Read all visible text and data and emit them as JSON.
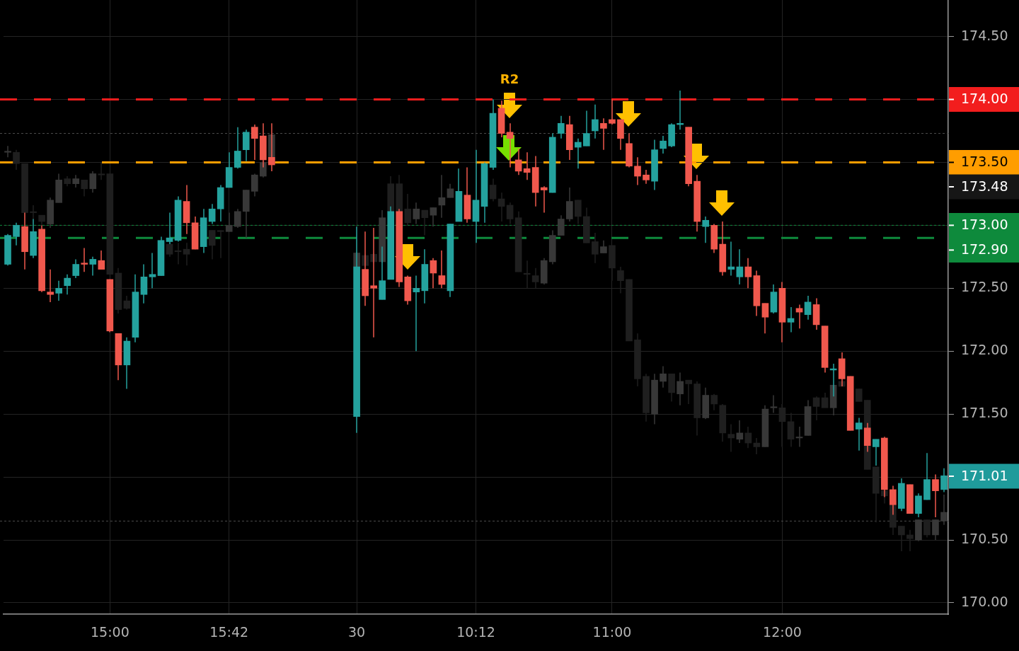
{
  "chart_data": {
    "type": "candlestick",
    "categories": [
      null,
      null,
      null,
      null,
      null,
      null,
      null,
      null,
      null,
      null,
      null,
      null,
      "15:00",
      null,
      null,
      null,
      null,
      null,
      null,
      null,
      null,
      null,
      null,
      null,
      null,
      null,
      "15:42",
      null,
      null,
      null,
      null,
      null,
      null,
      null,
      null,
      null,
      null,
      null,
      null,
      null,
      null,
      "30",
      null,
      null,
      null,
      null,
      null,
      null,
      null,
      null,
      null,
      null,
      null,
      null,
      null,
      "10:12",
      null,
      null,
      null,
      null,
      null,
      null,
      null,
      null,
      null,
      null,
      null,
      null,
      null,
      null,
      null,
      "11:00",
      null,
      null,
      null,
      null,
      null,
      null,
      null,
      null,
      null,
      null,
      null,
      null,
      null,
      null,
      null,
      null,
      null,
      null,
      null,
      "12:00",
      null,
      null,
      null,
      null,
      null,
      null,
      null,
      null,
      null,
      null,
      null,
      null,
      null,
      null,
      null,
      null,
      null,
      null,
      null
    ],
    "series": [
      {
        "ohlc": [
          [
            172.69,
            172.93,
            172.68,
            172.92
          ],
          [
            172.91,
            173.02,
            172.84,
            173.0
          ],
          [
            172.99,
            173.1,
            172.65,
            172.79
          ],
          [
            172.76,
            173.05,
            172.74,
            172.95
          ],
          [
            172.97,
            173.0,
            172.47,
            172.48
          ],
          [
            172.47,
            172.65,
            172.39,
            172.45
          ],
          [
            172.46,
            172.56,
            172.4,
            172.5
          ],
          [
            172.52,
            172.61,
            172.45,
            172.58
          ],
          [
            172.6,
            172.73,
            172.58,
            172.69
          ],
          [
            172.7,
            172.82,
            172.63,
            172.69
          ],
          [
            172.69,
            172.75,
            172.6,
            172.73
          ],
          [
            172.72,
            172.8,
            172.65,
            172.65
          ],
          [
            172.57,
            172.57,
            172.15,
            172.16
          ],
          [
            172.14,
            172.14,
            171.77,
            171.89
          ],
          [
            171.89,
            172.11,
            171.7,
            172.08
          ],
          [
            172.11,
            172.61,
            172.07,
            172.47
          ],
          [
            172.45,
            172.69,
            172.38,
            172.59
          ],
          [
            172.59,
            172.78,
            172.5,
            172.61
          ],
          [
            172.6,
            172.91,
            172.6,
            172.88
          ],
          [
            172.87,
            173.1,
            172.85,
            172.9
          ],
          [
            172.88,
            173.23,
            172.87,
            173.2
          ],
          [
            173.19,
            173.32,
            172.93,
            173.02
          ],
          [
            173.02,
            173.07,
            172.81,
            172.81
          ],
          [
            172.83,
            173.13,
            172.78,
            173.06
          ],
          [
            173.03,
            173.17,
            173.01,
            173.13
          ],
          [
            173.13,
            173.32,
            173.03,
            173.3
          ],
          [
            173.3,
            173.58,
            173.3,
            173.46
          ],
          [
            173.46,
            173.78,
            173.45,
            173.59
          ],
          [
            173.6,
            173.76,
            173.51,
            173.74
          ],
          [
            173.78,
            173.8,
            173.52,
            173.69
          ],
          [
            173.71,
            173.81,
            173.46,
            173.52
          ],
          [
            173.54,
            173.81,
            173.43,
            173.48
          ],
          null,
          null,
          null,
          null,
          null,
          null,
          null,
          null,
          null,
          [
            171.48,
            172.99,
            171.35,
            172.67
          ],
          [
            172.65,
            172.95,
            172.36,
            172.44
          ],
          [
            172.52,
            172.98,
            172.11,
            172.5
          ],
          [
            172.41,
            172.83,
            172.41,
            172.56
          ],
          [
            172.57,
            173.15,
            172.57,
            173.11
          ],
          [
            173.11,
            173.13,
            172.51,
            172.55
          ],
          [
            172.59,
            172.6,
            172.37,
            172.4
          ],
          [
            172.47,
            172.6,
            172.0,
            172.5
          ],
          [
            172.48,
            172.81,
            172.38,
            172.69
          ],
          [
            172.72,
            172.74,
            172.5,
            172.62
          ],
          [
            172.6,
            172.8,
            172.5,
            172.53
          ],
          [
            172.48,
            173.01,
            172.43,
            173.01
          ],
          [
            173.03,
            173.45,
            173.03,
            173.27
          ],
          [
            173.24,
            173.46,
            173.02,
            173.05
          ],
          [
            173.03,
            173.6,
            172.86,
            173.2
          ],
          [
            173.15,
            173.5,
            173.02,
            173.49
          ],
          [
            173.46,
            174.0,
            173.44,
            173.89
          ],
          [
            173.93,
            173.99,
            173.7,
            173.73
          ],
          [
            173.74,
            173.81,
            173.46,
            173.69
          ],
          [
            173.52,
            173.61,
            173.4,
            173.43
          ],
          [
            173.45,
            173.58,
            173.36,
            173.42
          ],
          [
            173.46,
            173.55,
            173.15,
            173.26
          ],
          [
            173.3,
            173.31,
            173.1,
            173.28
          ],
          [
            173.26,
            173.73,
            173.26,
            173.7
          ],
          [
            173.73,
            173.87,
            173.69,
            173.81
          ],
          [
            173.8,
            173.87,
            173.52,
            173.6
          ],
          [
            173.62,
            173.69,
            173.45,
            173.66
          ],
          [
            173.63,
            173.91,
            173.63,
            173.73
          ],
          [
            173.75,
            173.96,
            173.69,
            173.84
          ],
          [
            173.81,
            173.85,
            173.6,
            173.77
          ],
          [
            173.84,
            174.0,
            173.8,
            173.81
          ],
          [
            173.84,
            173.84,
            173.6,
            173.69
          ],
          [
            173.65,
            173.73,
            173.46,
            173.47
          ],
          [
            173.47,
            173.54,
            173.32,
            173.39
          ],
          [
            173.4,
            173.44,
            173.33,
            173.36
          ],
          [
            173.35,
            173.68,
            173.28,
            173.6
          ],
          [
            173.61,
            173.71,
            173.57,
            173.67
          ],
          [
            173.63,
            173.81,
            173.62,
            173.8
          ],
          [
            173.8,
            174.07,
            173.76,
            173.81
          ],
          [
            173.78,
            173.78,
            173.31,
            173.33
          ],
          [
            173.35,
            173.4,
            172.95,
            173.03
          ],
          [
            172.99,
            173.07,
            172.86,
            173.04
          ],
          [
            173.0,
            173.01,
            172.78,
            172.81
          ],
          [
            172.85,
            173.03,
            172.6,
            172.63
          ],
          [
            172.65,
            172.87,
            172.6,
            172.67
          ],
          [
            172.59,
            172.81,
            172.53,
            172.67
          ],
          [
            172.67,
            172.74,
            172.5,
            172.59
          ],
          [
            172.6,
            172.64,
            172.28,
            172.36
          ],
          [
            172.38,
            172.38,
            172.14,
            172.27
          ],
          [
            172.31,
            172.53,
            172.3,
            172.47
          ],
          [
            172.5,
            172.55,
            172.07,
            172.23
          ],
          [
            172.23,
            172.35,
            172.15,
            172.26
          ],
          [
            172.34,
            172.37,
            172.18,
            172.31
          ],
          [
            172.29,
            172.44,
            172.25,
            172.39
          ],
          [
            172.37,
            172.42,
            172.17,
            172.21
          ],
          [
            172.2,
            172.2,
            171.83,
            171.87
          ],
          [
            171.85,
            171.9,
            171.64,
            171.86
          ],
          [
            171.94,
            171.99,
            171.72,
            171.78
          ],
          [
            171.8,
            171.8,
            171.37,
            171.37
          ],
          [
            171.38,
            171.47,
            171.21,
            171.43
          ],
          [
            171.39,
            171.43,
            171.2,
            171.25
          ],
          [
            171.24,
            171.3,
            171.09,
            171.3
          ],
          [
            171.31,
            171.32,
            170.84,
            170.9
          ],
          [
            170.9,
            170.93,
            170.7,
            170.78
          ],
          [
            170.75,
            170.99,
            170.73,
            170.95
          ],
          [
            170.94,
            170.94,
            170.71,
            170.71
          ],
          [
            170.71,
            170.87,
            170.68,
            170.85
          ],
          [
            170.82,
            171.19,
            170.82,
            170.98
          ],
          [
            170.98,
            171.02,
            170.68,
            170.89
          ],
          [
            170.9,
            171.07,
            170.88,
            171.01
          ]
        ],
        "colors": [
          "#24a29e",
          "#24a29e",
          "#f0584d",
          "#24a29e",
          "#f0584d",
          "#f0584d",
          "#24a29e",
          "#24a29e",
          "#24a29e",
          "#f0584d",
          "#24a29e",
          "#f0584d",
          "#f0584d",
          "#f0584d",
          "#24a29e",
          "#24a29e",
          "#24a29e",
          "#24a29e",
          "#24a29e",
          "#24a29e",
          "#24a29e",
          "#f0584d",
          "#f0584d",
          "#24a29e",
          "#24a29e",
          "#24a29e",
          "#24a29e",
          "#24a29e",
          "#24a29e",
          "#f0584d",
          "#f0584d",
          "#f0584d",
          null,
          null,
          null,
          null,
          null,
          null,
          null,
          null,
          null,
          "#24a29e",
          "#f0584d",
          "#f0584d",
          "#24a29e",
          "#24a29e",
          "#f0584d",
          "#f0584d",
          "#24a29e",
          "#24a29e",
          "#f0584d",
          "#f0584d",
          "#24a29e",
          "#24a29e",
          "#f0584d",
          "#24a29e",
          "#24a29e",
          "#24a29e",
          "#f0584d",
          "#f0584d",
          "#f0584d",
          "#f0584d",
          "#f0584d",
          "#f0584d",
          "#24a29e",
          "#24a29e",
          "#f0584d",
          "#24a29e",
          "#24a29e",
          "#24a29e",
          "#f0584d",
          "#f0584d",
          "#f0584d",
          "#f0584d",
          "#f0584d",
          "#f0584d",
          "#24a29e",
          "#24a29e",
          "#24a29e",
          "#24a29e",
          "#f0584d",
          "#f0584d",
          "#24a29e",
          "#f0584d",
          "#f0584d",
          "#24a29e",
          "#24a29e",
          "#f0584d",
          "#f0584d",
          "#f0584d",
          "#24a29e",
          "#f0584d",
          "#24a29e",
          "#f0584d",
          "#24a29e",
          "#f0584d",
          "#f0584d",
          "#24a29e",
          "#f0584d",
          "#f0584d",
          "#24a29e",
          "#f0584d",
          "#24a29e",
          "#f0584d",
          "#f0584d",
          "#24a29e",
          "#f0584d",
          "#24a29e",
          "#24a29e",
          "#f0584d",
          "#24a29e"
        ]
      },
      {
        "ohlc": [
          [
            173.58,
            173.63,
            173.54,
            173.58
          ],
          [
            173.58,
            173.6,
            173.44,
            173.49
          ],
          [
            173.49,
            173.49,
            172.99,
            173.1
          ],
          [
            173.1,
            173.16,
            173.01,
            173.1
          ],
          [
            173.08,
            173.08,
            173.0,
            173.03
          ],
          [
            173.01,
            173.22,
            172.98,
            173.2
          ],
          [
            173.18,
            173.41,
            173.18,
            173.36
          ],
          [
            173.37,
            173.39,
            173.31,
            173.33
          ],
          [
            173.33,
            173.4,
            173.3,
            173.37
          ],
          [
            173.36,
            173.36,
            173.23,
            173.29
          ],
          [
            173.29,
            173.43,
            173.26,
            173.41
          ],
          [
            173.4,
            173.5,
            173.36,
            173.4
          ],
          [
            173.41,
            173.41,
            172.61,
            172.61
          ],
          [
            172.62,
            172.66,
            172.3,
            172.33
          ],
          [
            172.4,
            172.44,
            172.33,
            172.34
          ],
          null,
          null,
          null,
          null,
          [
            172.85,
            172.87,
            172.75,
            172.77
          ],
          [
            172.79,
            172.86,
            172.69,
            172.79
          ],
          [
            172.81,
            172.86,
            172.68,
            172.77
          ],
          null,
          null,
          [
            172.96,
            172.96,
            172.73,
            172.84
          ],
          [
            172.95,
            172.96,
            172.74,
            172.95
          ],
          [
            172.95,
            173.1,
            172.95,
            173.0
          ],
          [
            172.99,
            173.13,
            172.98,
            173.11
          ],
          [
            173.11,
            173.28,
            172.9,
            173.28
          ],
          [
            173.27,
            173.41,
            173.23,
            173.4
          ],
          [
            173.39,
            173.51,
            173.38,
            173.5
          ],
          [
            173.5,
            173.72,
            173.5,
            173.72
          ],
          null,
          null,
          null,
          null,
          null,
          null,
          null,
          null,
          null,
          [
            172.67,
            172.79,
            172.66,
            172.78
          ],
          [
            172.76,
            172.77,
            172.67,
            172.68
          ],
          [
            172.77,
            172.78,
            172.7,
            172.71
          ],
          [
            172.71,
            173.12,
            172.7,
            173.06
          ],
          [
            173.33,
            173.39,
            173.1,
            173.11
          ],
          [
            173.33,
            173.4,
            173.1,
            173.11
          ],
          [
            173.13,
            173.25,
            173.0,
            173.02
          ],
          [
            173.05,
            173.18,
            173.01,
            173.13
          ],
          [
            173.12,
            173.12,
            172.92,
            173.06
          ],
          [
            173.08,
            173.14,
            172.99,
            173.14
          ],
          [
            173.16,
            173.4,
            173.06,
            173.22
          ],
          [
            173.22,
            173.33,
            173.22,
            173.29
          ],
          null,
          null,
          null,
          null,
          [
            173.32,
            173.37,
            173.19,
            173.21
          ],
          [
            173.21,
            173.26,
            173.03,
            173.15
          ],
          [
            173.16,
            173.18,
            173.01,
            173.05
          ],
          [
            173.06,
            173.11,
            172.63,
            172.63
          ],
          [
            172.61,
            172.72,
            172.5,
            172.61
          ],
          [
            172.6,
            172.66,
            172.5,
            172.55
          ],
          [
            172.54,
            172.74,
            172.53,
            172.72
          ],
          [
            172.71,
            172.96,
            172.69,
            172.92
          ],
          [
            172.92,
            173.08,
            172.92,
            173.05
          ],
          [
            173.05,
            173.3,
            173.03,
            173.19
          ],
          [
            173.2,
            173.2,
            173.01,
            173.07
          ],
          [
            173.07,
            173.14,
            172.86,
            172.86
          ],
          [
            172.87,
            172.94,
            172.7,
            172.77
          ],
          [
            172.78,
            172.88,
            172.78,
            172.83
          ],
          [
            172.84,
            172.84,
            172.56,
            172.66
          ],
          [
            172.64,
            172.67,
            172.46,
            172.56
          ],
          [
            172.57,
            172.57,
            172.08,
            172.08
          ],
          [
            172.09,
            172.14,
            171.72,
            171.78
          ],
          [
            171.8,
            171.82,
            171.44,
            171.51
          ],
          [
            171.5,
            171.82,
            171.42,
            171.77
          ],
          [
            171.76,
            171.88,
            171.71,
            171.82
          ],
          [
            171.82,
            171.82,
            171.6,
            171.67
          ],
          [
            171.66,
            171.83,
            171.57,
            171.76
          ],
          [
            171.77,
            171.77,
            171.58,
            171.74
          ],
          [
            171.74,
            171.76,
            171.33,
            171.47
          ],
          [
            171.47,
            171.71,
            171.46,
            171.65
          ],
          [
            171.65,
            171.66,
            171.53,
            171.58
          ],
          [
            171.57,
            171.58,
            171.28,
            171.35
          ],
          [
            171.34,
            171.42,
            171.2,
            171.31
          ],
          [
            171.3,
            171.45,
            171.27,
            171.35
          ],
          [
            171.35,
            171.4,
            171.23,
            171.27
          ],
          [
            171.27,
            171.31,
            171.18,
            171.24
          ],
          [
            171.24,
            171.57,
            171.24,
            171.54
          ],
          [
            171.55,
            171.65,
            171.51,
            171.55
          ],
          [
            171.55,
            171.58,
            171.24,
            171.44
          ],
          [
            171.44,
            171.51,
            171.24,
            171.3
          ],
          [
            171.31,
            171.4,
            171.24,
            171.31
          ],
          [
            171.33,
            171.61,
            171.33,
            171.56
          ],
          [
            171.63,
            171.64,
            171.45,
            171.56
          ],
          [
            171.63,
            171.67,
            171.55,
            171.55
          ],
          [
            171.55,
            171.73,
            171.49,
            171.73
          ],
          [
            171.76,
            171.76,
            171.72,
            171.72
          ],
          null,
          [
            171.7,
            171.7,
            171.6,
            171.6
          ],
          [
            171.61,
            171.61,
            171.06,
            171.06
          ],
          [
            171.08,
            171.08,
            170.64,
            170.87
          ],
          [
            170.89,
            170.89,
            170.79,
            170.85
          ],
          [
            170.81,
            170.81,
            170.54,
            170.6
          ],
          [
            170.61,
            170.61,
            170.41,
            170.54
          ],
          [
            170.54,
            170.58,
            170.41,
            170.51
          ],
          [
            170.5,
            170.66,
            170.49,
            170.66
          ],
          [
            170.66,
            170.66,
            170.52,
            170.54
          ],
          [
            170.54,
            170.66,
            170.5,
            170.66
          ],
          [
            170.65,
            170.86,
            170.62,
            170.72
          ]
        ],
        "colors": [
          "#383838",
          "#1f1f1f",
          "#1f1f1f",
          "#1f1f1f",
          "#1f1f1f",
          "#383838",
          "#383838",
          "#1f1f1f",
          "#383838",
          "#1f1f1f",
          "#383838",
          "#1f1f1f",
          "#1f1f1f",
          "#1f1f1f",
          "#1f1f1f",
          null,
          null,
          null,
          null,
          "#1f1f1f",
          "#1f1f1f",
          "#1f1f1f",
          null,
          null,
          "#1f1f1f",
          "#1f1f1f",
          "#383838",
          "#383838",
          "#383838",
          "#383838",
          "#383838",
          "#383838",
          null,
          null,
          null,
          null,
          null,
          null,
          null,
          null,
          null,
          "#383838",
          "#1f1f1f",
          "#1f1f1f",
          "#383838",
          "#1f1f1f",
          "#1f1f1f",
          "#1f1f1f",
          "#383838",
          "#1f1f1f",
          "#383838",
          "#383838",
          "#383838",
          null,
          null,
          null,
          null,
          "#1f1f1f",
          "#1f1f1f",
          "#1f1f1f",
          "#1f1f1f",
          "#1f1f1f",
          "#1f1f1f",
          "#383838",
          "#383838",
          "#383838",
          "#383838",
          "#1f1f1f",
          "#1f1f1f",
          "#1f1f1f",
          "#383838",
          "#1f1f1f",
          "#1f1f1f",
          "#1f1f1f",
          "#1f1f1f",
          "#1f1f1f",
          "#383838",
          "#383838",
          "#1f1f1f",
          "#383838",
          "#1f1f1f",
          "#1f1f1f",
          "#383838",
          "#1f1f1f",
          "#1f1f1f",
          "#1f1f1f",
          "#383838",
          "#1f1f1f",
          "#1f1f1f",
          "#383838",
          "#383838",
          "#1f1f1f",
          "#1f1f1f",
          "#383838",
          "#383838",
          "#1f1f1f",
          "#1f1f1f",
          "#383838",
          "#1f1f1f",
          null,
          "#1f1f1f",
          "#1f1f1f",
          "#1f1f1f",
          "#1f1f1f",
          "#1f1f1f",
          "#1f1f1f",
          "#1f1f1f",
          "#383838",
          "#1f1f1f",
          "#383838",
          "#383838"
        ]
      }
    ],
    "ylim": [
      169.91,
      174.79
    ],
    "yticks": [
      {
        "value": 170,
        "label": "170.00"
      },
      {
        "value": 170.5,
        "label": "170.50"
      },
      {
        "value": 171,
        "label": null
      },
      {
        "value": 171.5,
        "label": "171.50"
      },
      {
        "value": 172,
        "label": "172.00"
      },
      {
        "value": 172.5,
        "label": "172.50"
      },
      {
        "value": 173,
        "label": null
      },
      {
        "value": 173.5,
        "label": null
      },
      {
        "value": 174,
        "label": null
      },
      {
        "value": 174.5,
        "label": "174.50"
      }
    ],
    "grid": true,
    "ref_lines": [
      {
        "axis": "y",
        "value": 174.0,
        "label": "174.00",
        "color": "#f21d1d",
        "line_style": "dashed"
      },
      {
        "axis": "y",
        "value": 173.73,
        "color": "#4d4d4d",
        "line_style": "dotted"
      },
      {
        "axis": "y",
        "value": 173.5,
        "label": "173.50",
        "color": "#ff9d00",
        "line_style": "dashed"
      },
      {
        "axis": "y",
        "value": 173.0,
        "label": "173.00",
        "color": "#0e8a3c",
        "line_style": "dotted"
      },
      {
        "axis": "y",
        "value": 172.9,
        "label": "172.90",
        "color": "#0e8a3c",
        "line_style": "dashed"
      },
      {
        "axis": "y",
        "value": 170.65,
        "color": "#4d4d4d",
        "line_style": "dotted"
      }
    ],
    "annotations": [
      "R2",
      "173.48",
      "171.01"
    ]
  }
}
